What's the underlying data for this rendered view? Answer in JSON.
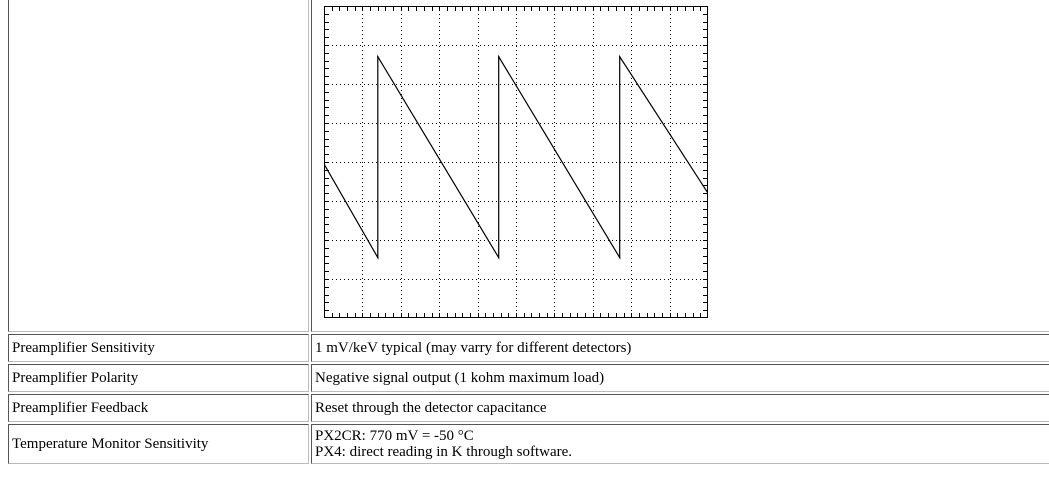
{
  "rows": [
    {
      "label": "Preamplifier Sensitivity",
      "value": "1 mV/keV typical (may varry for different detectors)"
    },
    {
      "label": "Preamplifier Polarity",
      "value": "Negative signal output (1 kohm maximum load)"
    },
    {
      "label": "Preamplifier Feedback",
      "value": "Reset through the detector capacitance"
    }
  ],
  "temperature": {
    "label": "Temperature Monitor Sensitivity",
    "lines": [
      "PX2CR: 770 mV = -50 °C",
      "PX4: direct reading in K through software."
    ]
  },
  "chart_data": {
    "type": "line",
    "title": "",
    "xlabel": "",
    "ylabel": "",
    "grid": true,
    "divisions": {
      "x": 10,
      "y": 8
    },
    "xlim": [
      0,
      10
    ],
    "ylim": [
      0,
      8
    ],
    "series": [
      {
        "x": [
          0,
          1.4,
          1.4,
          4.55,
          4.55,
          7.7,
          7.7,
          10
        ],
        "values": [
          3.95,
          1.55,
          6.7,
          1.55,
          6.7,
          1.55,
          6.7,
          3.2
        ]
      }
    ]
  }
}
